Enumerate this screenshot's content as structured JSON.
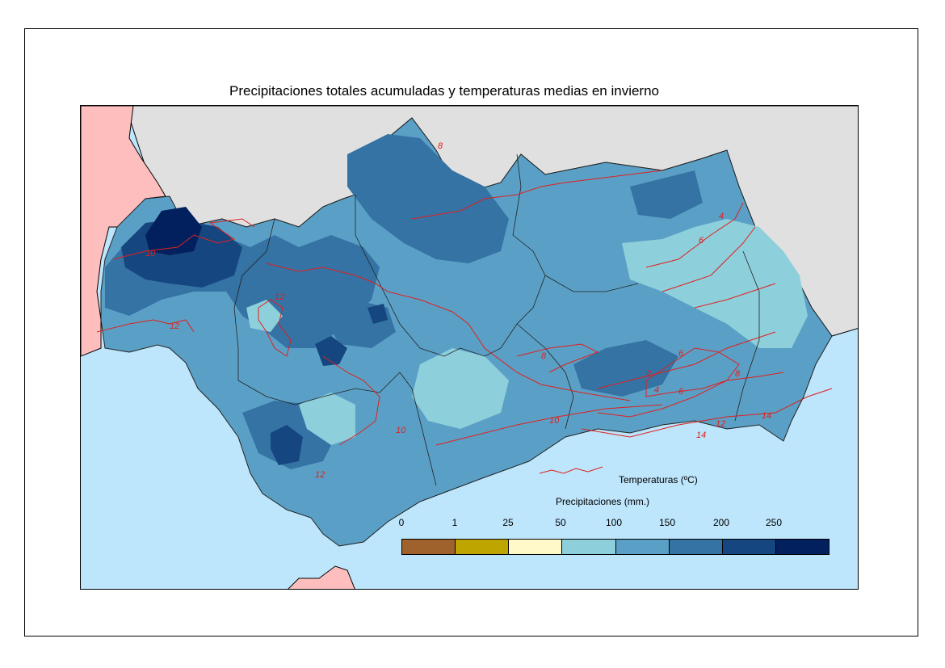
{
  "title": "Precipitaciones totales acumuladas y temperaturas medias en invierno",
  "legend": {
    "temperature_label": "Temperaturas (ºC)",
    "precipitation_label": "Precipitaciones (mm.)",
    "ticks": [
      "0",
      "1",
      "25",
      "50",
      "100",
      "150",
      "200",
      "250"
    ],
    "classes": [
      {
        "from": 0,
        "to": 1,
        "color": "#a0622d"
      },
      {
        "from": 1,
        "to": 25,
        "color": "#bfa500"
      },
      {
        "from": 25,
        "to": 50,
        "color": "#fff8c8"
      },
      {
        "from": 50,
        "to": 100,
        "color": "#8ecfdc"
      },
      {
        "from": 100,
        "to": 150,
        "color": "#5aa0c6"
      },
      {
        "from": 150,
        "to": 200,
        "color": "#3473a4"
      },
      {
        "from": 200,
        "to": 250,
        "color": "#16467f"
      },
      {
        "from": 250,
        "to": null,
        "color": "#03205e"
      }
    ]
  },
  "isotherm_labels": [
    "8",
    "10",
    "12",
    "12",
    "10",
    "12",
    "8",
    "10",
    "6",
    "4",
    "6",
    "8",
    "2",
    "4",
    "6",
    "12",
    "14",
    "14"
  ],
  "colors": {
    "sea": "#bde5fb",
    "land_outside": "#e0e0e0",
    "portugal_morocco": "#ffbebe",
    "isotherm": "#e0201e",
    "borders": "#000000"
  }
}
